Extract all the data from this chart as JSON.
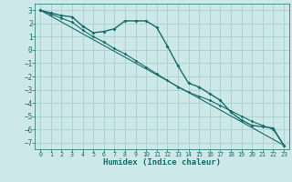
{
  "title": "",
  "xlabel": "Humidex (Indice chaleur)",
  "background_color": "#cce8e8",
  "grid_color": "#aacfcf",
  "line_color": "#1a6b6b",
  "xlim": [
    -0.5,
    23.5
  ],
  "ylim": [
    -7.5,
    3.5
  ],
  "yticks": [
    3,
    2,
    1,
    0,
    -1,
    -2,
    -3,
    -4,
    -5,
    -6,
    -7
  ],
  "xticks": [
    0,
    1,
    2,
    3,
    4,
    5,
    6,
    7,
    8,
    9,
    10,
    11,
    12,
    13,
    14,
    15,
    16,
    17,
    18,
    19,
    20,
    21,
    22,
    23
  ],
  "line1_x": [
    0,
    1,
    2,
    3,
    4,
    5,
    6,
    7,
    8,
    9,
    10,
    11,
    12,
    13,
    14,
    15,
    16,
    17,
    18,
    19,
    20,
    21,
    22,
    23
  ],
  "line1_y": [
    3.0,
    2.8,
    2.6,
    2.5,
    1.8,
    1.3,
    1.4,
    1.6,
    2.2,
    2.2,
    2.2,
    1.7,
    0.3,
    -1.2,
    -2.5,
    -2.8,
    -3.3,
    -3.8,
    -4.7,
    -5.3,
    -5.7,
    -5.8,
    -5.9,
    -7.2
  ],
  "line2_x": [
    0,
    1,
    2,
    3,
    4,
    5,
    6,
    7,
    8,
    9,
    10,
    11,
    12,
    13,
    14,
    15,
    16,
    17,
    18,
    19,
    20,
    21,
    22,
    23
  ],
  "line2_y": [
    3.0,
    2.7,
    2.4,
    2.1,
    1.5,
    1.0,
    0.6,
    0.1,
    -0.3,
    -0.8,
    -1.3,
    -1.8,
    -2.3,
    -2.8,
    -3.2,
    -3.5,
    -3.8,
    -4.2,
    -4.6,
    -5.0,
    -5.4,
    -5.7,
    -6.0,
    -7.2
  ],
  "line3_x": [
    0,
    23
  ],
  "line3_y": [
    3.0,
    -7.2
  ]
}
